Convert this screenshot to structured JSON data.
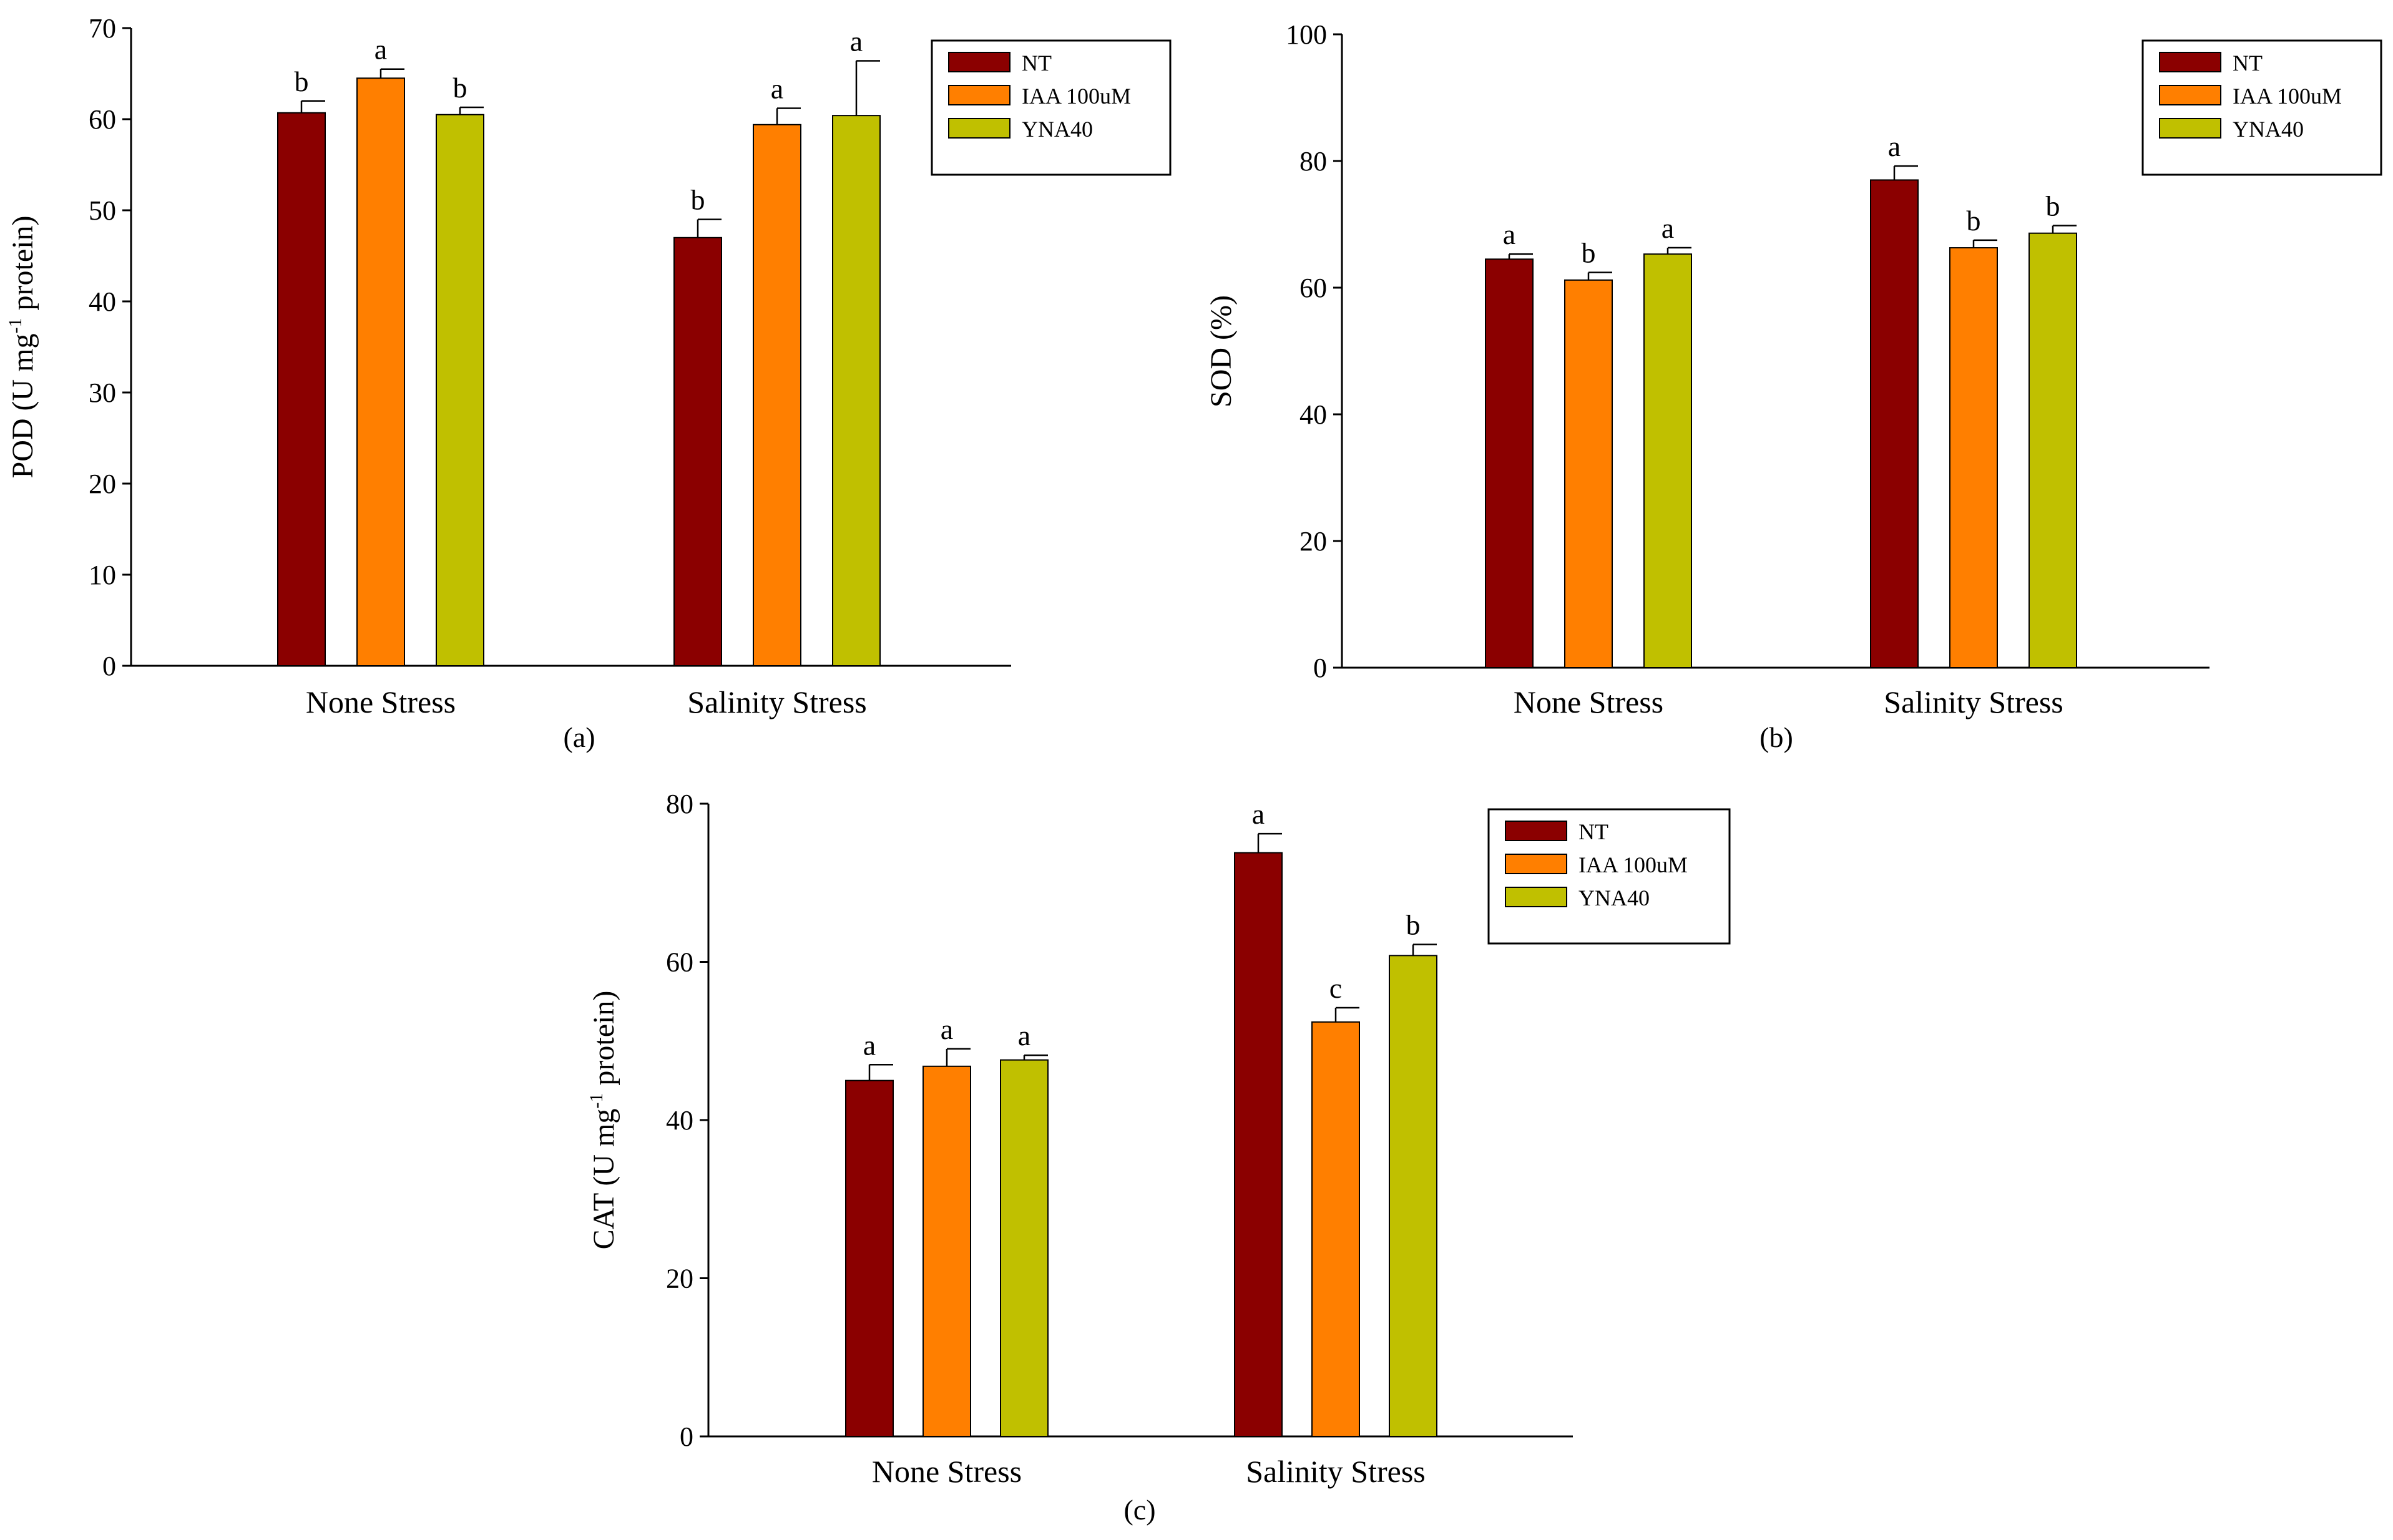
{
  "colors": {
    "NT": "#8b0000",
    "IAA": "#ff7f00",
    "YNA": "#c0c000"
  },
  "legend": [
    "NT",
    "IAA 100uM",
    "YNA40"
  ],
  "chart_data": [
    {
      "type": "bar",
      "panel_label": "(a)",
      "ylabel": "POD (U mg-1 protein)",
      "ylabel_main": "POD (U mg",
      "ylabel_sup": "-1",
      "ylabel_end": " protein)",
      "categories": [
        "None Stress",
        "Salinity Stress"
      ],
      "ylim": [
        0,
        70
      ],
      "yticks": [
        0,
        10,
        20,
        30,
        40,
        50,
        60,
        70
      ],
      "legend_position": "top-right",
      "grid": false,
      "series": [
        {
          "name": "NT",
          "values": [
            60.7,
            47.0
          ],
          "errors": [
            1.3,
            2.0
          ],
          "letters": [
            "b",
            "b"
          ]
        },
        {
          "name": "IAA 100uM",
          "values": [
            64.5,
            59.4
          ],
          "errors": [
            1.0,
            1.8
          ],
          "letters": [
            "a",
            "a"
          ]
        },
        {
          "name": "YNA40",
          "values": [
            60.5,
            60.4
          ],
          "errors": [
            0.8,
            6.0
          ],
          "letters": [
            "b",
            "a"
          ]
        }
      ]
    },
    {
      "type": "bar",
      "panel_label": "(b)",
      "ylabel": "SOD (%)",
      "ylabel_main": "SOD (%)",
      "ylabel_sup": "",
      "ylabel_end": "",
      "categories": [
        "None Stress",
        "Salinity Stress"
      ],
      "ylim": [
        0,
        100
      ],
      "yticks": [
        0,
        20,
        40,
        60,
        80,
        100
      ],
      "legend_position": "top-right",
      "grid": false,
      "series": [
        {
          "name": "NT",
          "values": [
            64.5,
            77.0
          ],
          "errors": [
            0.8,
            2.2
          ],
          "letters": [
            "a",
            "a"
          ]
        },
        {
          "name": "IAA 100uM",
          "values": [
            61.2,
            66.3
          ],
          "errors": [
            1.2,
            1.2
          ],
          "letters": [
            "b",
            "b"
          ]
        },
        {
          "name": "YNA40",
          "values": [
            65.3,
            68.6
          ],
          "errors": [
            1.0,
            1.2
          ],
          "letters": [
            "a",
            "b"
          ]
        }
      ]
    },
    {
      "type": "bar",
      "panel_label": "(c)",
      "ylabel": "CAT (U mg-1 protein)",
      "ylabel_main": "CAT (U mg",
      "ylabel_sup": "-1",
      "ylabel_end": " protein)",
      "categories": [
        "None Stress",
        "Salinity Stress"
      ],
      "ylim": [
        0,
        80
      ],
      "yticks": [
        0,
        20,
        40,
        60,
        80
      ],
      "legend_position": "top-right",
      "grid": false,
      "series": [
        {
          "name": "NT",
          "values": [
            45.0,
            73.8
          ],
          "errors": [
            2.0,
            2.4
          ],
          "letters": [
            "a",
            "a"
          ]
        },
        {
          "name": "IAA 100uM",
          "values": [
            46.8,
            52.4
          ],
          "errors": [
            2.2,
            1.8
          ],
          "letters": [
            "a",
            "c"
          ]
        },
        {
          "name": "YNA40",
          "values": [
            47.6,
            60.8
          ],
          "errors": [
            0.6,
            1.4
          ],
          "letters": [
            "a",
            "b"
          ]
        }
      ]
    }
  ]
}
